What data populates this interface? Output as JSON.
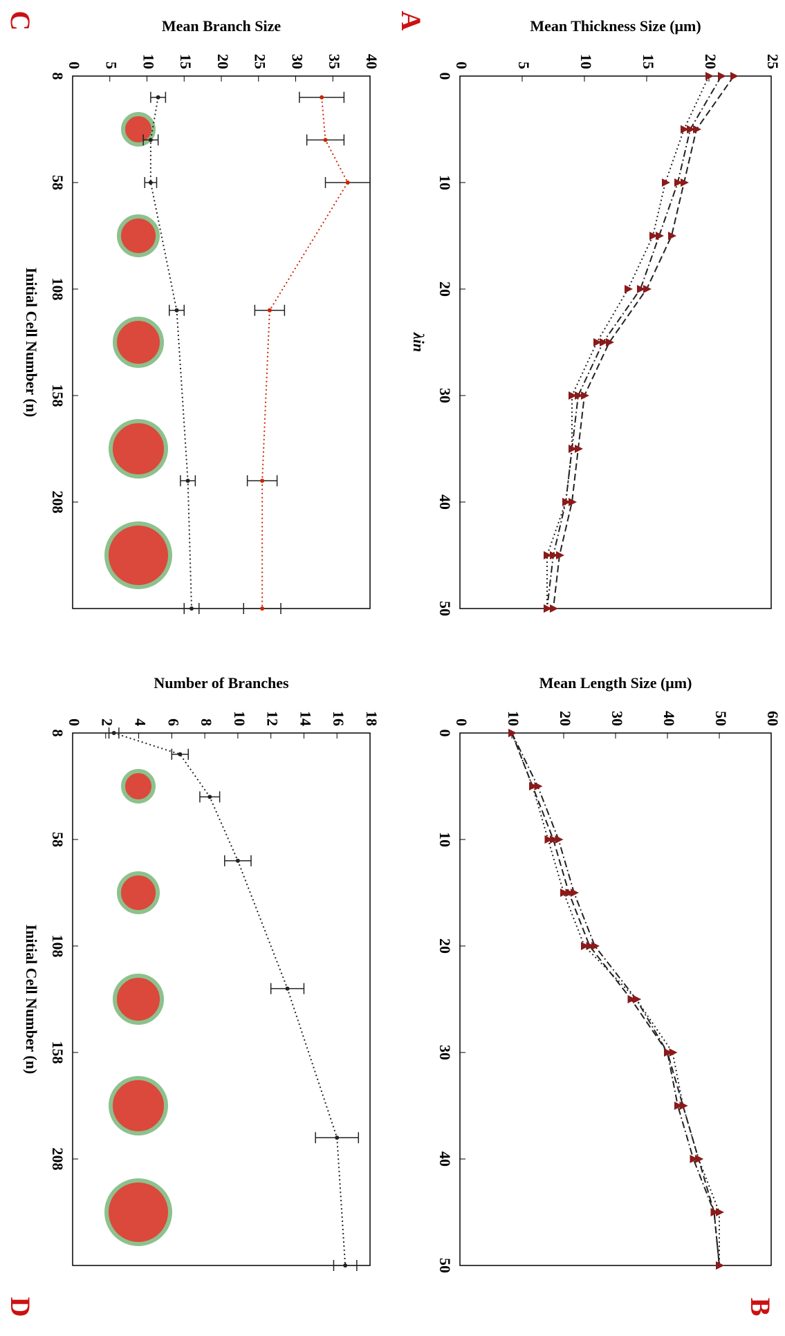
{
  "chart_data": [
    {
      "type": "line",
      "panel": "A",
      "x_label": "λin",
      "y_label": "Mean Thickness Size (μm)",
      "x": [
        0,
        5,
        10,
        15,
        20,
        25,
        30,
        35,
        40,
        45,
        50
      ],
      "xlim": [
        0,
        50
      ],
      "xticks": [
        0,
        10,
        20,
        30,
        40,
        50
      ],
      "ylim": [
        0,
        25
      ],
      "yticks": [
        0,
        5,
        10,
        15,
        20,
        25
      ],
      "series": [
        {
          "color": "#8b1a1a",
          "line_style": "dashed",
          "values": [
            22,
            19,
            18,
            17,
            15,
            12,
            10,
            9.5,
            9,
            8,
            7.5
          ]
        },
        {
          "color": "#8b1a1a",
          "line_style": "dashdot",
          "values": [
            21,
            18.5,
            17.5,
            16,
            14.5,
            11.5,
            9.5,
            9,
            8.5,
            7.5,
            7
          ]
        },
        {
          "color": "#8b1a1a",
          "line_style": "dotted",
          "values": [
            20,
            18,
            16.5,
            15.5,
            13.5,
            11,
            9,
            9,
            8.5,
            7,
            7
          ]
        }
      ]
    },
    {
      "type": "line",
      "panel": "B",
      "y_label": "Mean Length Size (μm)",
      "x": [
        0,
        5,
        10,
        15,
        20,
        25,
        30,
        35,
        40,
        45,
        50
      ],
      "xlim": [
        0,
        50
      ],
      "xticks": [
        0,
        10,
        20,
        30,
        40,
        50
      ],
      "ylim": [
        0,
        60
      ],
      "yticks": [
        0,
        10,
        20,
        30,
        40,
        50,
        60
      ],
      "series": [
        {
          "color": "#8b1a1a",
          "line_style": "dashed",
          "values": [
            10,
            14,
            18,
            21,
            25,
            33,
            40,
            43,
            46,
            49,
            50
          ]
        },
        {
          "color": "#8b1a1a",
          "line_style": "dashdot",
          "values": [
            10,
            15,
            19,
            22,
            26,
            34,
            40,
            42,
            45,
            49,
            50
          ]
        },
        {
          "color": "#8b1a1a",
          "line_style": "dotted",
          "values": [
            10,
            14,
            17,
            20,
            24,
            34,
            41,
            43,
            46,
            50,
            50
          ]
        }
      ]
    },
    {
      "type": "errorline",
      "panel": "C",
      "x_label": "Initial Cell Number (n)",
      "y_label": "Mean Branch Size",
      "x": [
        18,
        38,
        58,
        118,
        198,
        258
      ],
      "xlim": [
        8,
        258
      ],
      "xticks": [
        8,
        58,
        108,
        158,
        208
      ],
      "ylim": [
        0,
        40
      ],
      "yticks": [
        0,
        5,
        10,
        15,
        20,
        25,
        30,
        35,
        40
      ],
      "series": [
        {
          "color": "#cc2200",
          "line_style": "dotted",
          "values": [
            33.5,
            34,
            37,
            26.5,
            25.5,
            25.5
          ],
          "errors": [
            3,
            2.5,
            3,
            2,
            2,
            2.5
          ]
        },
        {
          "color": "#222222",
          "line_style": "dotted",
          "values": [
            11.5,
            10.5,
            10.5,
            14,
            15.5,
            16
          ],
          "errors": [
            1,
            1,
            0.8,
            1,
            1,
            1
          ]
        }
      ]
    },
    {
      "type": "errorline",
      "panel": "D",
      "x_label": "Initial Cell Number (n)",
      "y_label": "Number of Branches",
      "x": [
        8,
        18,
        38,
        68,
        128,
        198,
        258
      ],
      "xlim": [
        8,
        258
      ],
      "xticks": [
        8,
        58,
        108,
        158,
        208
      ],
      "ylim": [
        0,
        18
      ],
      "yticks": [
        0,
        2,
        4,
        6,
        8,
        10,
        12,
        14,
        16,
        18
      ],
      "series": [
        {
          "color": "#222222",
          "line_style": "dotted",
          "values": [
            2.5,
            6.5,
            8.3,
            10,
            13,
            16,
            16.5
          ],
          "errors": [
            0.3,
            0.5,
            0.6,
            0.8,
            1,
            1.3,
            0.7
          ]
        }
      ]
    }
  ]
}
